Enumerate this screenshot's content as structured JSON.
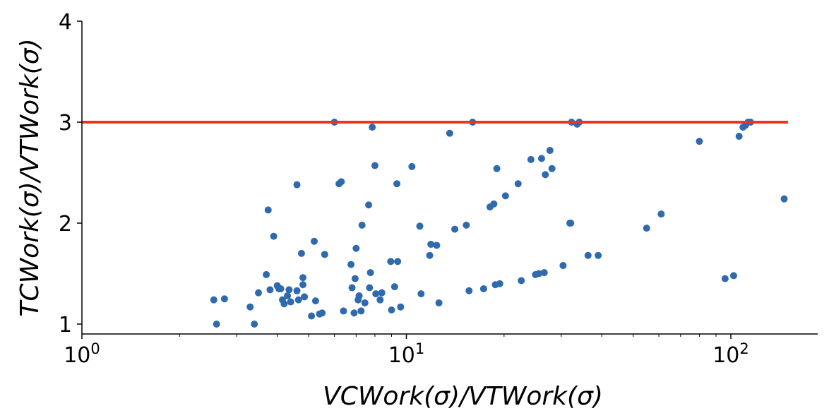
{
  "chart_data": {
    "type": "scatter",
    "xlabel": "VCWork(σ)/VTWork(σ)",
    "ylabel": "TCWork(σ)/VTWork(σ)",
    "x_scale": "log",
    "xlim": [
      1,
      180
    ],
    "ylim": [
      0.9,
      4
    ],
    "x_ticks": [
      {
        "value": 1,
        "base": "10",
        "exp": "0"
      },
      {
        "value": 10,
        "base": "10",
        "exp": "1"
      },
      {
        "value": 100,
        "base": "10",
        "exp": "2"
      }
    ],
    "y_ticks": [
      1,
      2,
      3,
      4
    ],
    "grid": false,
    "reference_line": {
      "y": 3,
      "x_range": [
        1,
        150
      ],
      "color": "#ee3322"
    },
    "point_color": "#2e6aad",
    "points": [
      [
        2.55,
        1.24
      ],
      [
        2.75,
        1.25
      ],
      [
        2.6,
        1.0
      ],
      [
        3.3,
        1.17
      ],
      [
        3.4,
        1.0
      ],
      [
        3.5,
        1.31
      ],
      [
        3.7,
        1.49
      ],
      [
        3.75,
        2.13
      ],
      [
        3.8,
        1.34
      ],
      [
        3.9,
        1.87
      ],
      [
        4.0,
        1.38
      ],
      [
        4.05,
        1.35
      ],
      [
        4.1,
        1.35
      ],
      [
        4.15,
        1.24
      ],
      [
        4.2,
        1.2
      ],
      [
        4.3,
        1.28
      ],
      [
        4.35,
        1.34
      ],
      [
        4.4,
        1.22
      ],
      [
        4.6,
        2.38
      ],
      [
        4.6,
        1.33
      ],
      [
        4.65,
        1.24
      ],
      [
        4.75,
        1.7
      ],
      [
        4.8,
        1.46
      ],
      [
        4.8,
        1.39
      ],
      [
        4.85,
        1.27
      ],
      [
        5.1,
        1.08
      ],
      [
        5.2,
        1.82
      ],
      [
        5.25,
        1.23
      ],
      [
        5.4,
        1.1
      ],
      [
        5.5,
        1.11
      ],
      [
        5.6,
        1.69
      ],
      [
        6.0,
        3.0
      ],
      [
        6.2,
        2.39
      ],
      [
        6.3,
        2.41
      ],
      [
        6.4,
        1.13
      ],
      [
        6.75,
        1.59
      ],
      [
        6.8,
        1.36
      ],
      [
        6.9,
        1.11
      ],
      [
        6.95,
        1.45
      ],
      [
        7.0,
        1.75
      ],
      [
        7.1,
        1.24
      ],
      [
        7.15,
        1.28
      ],
      [
        7.25,
        1.13
      ],
      [
        7.3,
        1.98
      ],
      [
        7.45,
        1.21
      ],
      [
        7.65,
        2.18
      ],
      [
        7.7,
        1.36
      ],
      [
        7.75,
        1.51
      ],
      [
        7.85,
        2.95
      ],
      [
        8.0,
        2.57
      ],
      [
        8.05,
        1.3
      ],
      [
        8.3,
        1.24
      ],
      [
        8.4,
        1.31
      ],
      [
        8.95,
        1.62
      ],
      [
        9.0,
        1.14
      ],
      [
        9.2,
        1.37
      ],
      [
        9.35,
        2.39
      ],
      [
        9.4,
        1.62
      ],
      [
        9.6,
        1.17
      ],
      [
        10.4,
        2.56
      ],
      [
        11.0,
        1.97
      ],
      [
        11.1,
        1.3
      ],
      [
        11.8,
        1.68
      ],
      [
        11.9,
        1.79
      ],
      [
        12.4,
        1.78
      ],
      [
        12.6,
        1.21
      ],
      [
        13.6,
        2.89
      ],
      [
        14.1,
        1.94
      ],
      [
        15.3,
        1.98
      ],
      [
        15.6,
        1.33
      ],
      [
        16.0,
        3.0
      ],
      [
        17.3,
        1.35
      ],
      [
        18.1,
        2.16
      ],
      [
        18.6,
        2.19
      ],
      [
        18.8,
        1.39
      ],
      [
        19.0,
        2.54
      ],
      [
        19.4,
        1.4
      ],
      [
        20.2,
        2.27
      ],
      [
        22.1,
        2.39
      ],
      [
        22.6,
        1.43
      ],
      [
        24.2,
        2.63
      ],
      [
        25.0,
        1.49
      ],
      [
        25.6,
        1.5
      ],
      [
        26.1,
        2.64
      ],
      [
        26.6,
        1.51
      ],
      [
        26.8,
        2.48
      ],
      [
        27.7,
        2.72
      ],
      [
        28.1,
        2.54
      ],
      [
        30.4,
        1.58
      ],
      [
        31.9,
        2.0
      ],
      [
        32.1,
        2.0
      ],
      [
        32.3,
        3.0
      ],
      [
        33.6,
        2.98
      ],
      [
        34.1,
        3.0
      ],
      [
        36.3,
        1.68
      ],
      [
        39.0,
        1.68
      ],
      [
        55.0,
        1.95
      ],
      [
        61.0,
        2.09
      ],
      [
        80.0,
        2.81
      ],
      [
        96.0,
        1.45
      ],
      [
        102.0,
        1.48
      ],
      [
        106.0,
        2.86
      ],
      [
        109.0,
        2.95
      ],
      [
        111.0,
        2.97
      ],
      [
        113.0,
        3.0
      ],
      [
        115.0,
        3.0
      ],
      [
        146.0,
        2.24
      ]
    ]
  }
}
